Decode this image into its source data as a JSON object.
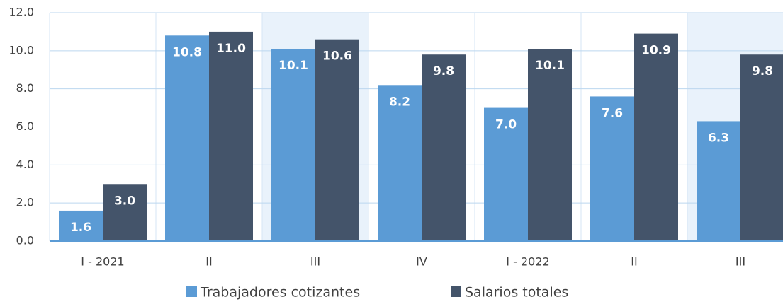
{
  "chart_data": {
    "type": "bar",
    "categories": [
      "I - 2021",
      "II",
      "III",
      "IV",
      "I - 2022",
      "II",
      "III"
    ],
    "series": [
      {
        "name": "Trabajadores cotizantes",
        "color": "#5b9bd5",
        "values": [
          1.6,
          10.8,
          10.1,
          8.2,
          7.0,
          7.6,
          6.3
        ],
        "value_labels": [
          "1.6",
          "10.8",
          "10.1",
          "8.2",
          "7.0",
          "7.6",
          "6.3"
        ]
      },
      {
        "name": "Salarios totales",
        "color": "#44546a",
        "values": [
          3.0,
          11.0,
          10.6,
          9.8,
          10.1,
          10.9,
          9.8
        ],
        "value_labels": [
          "3.0",
          "11.0",
          "10.6",
          "9.8",
          "10.1",
          "10.9",
          "9.8"
        ]
      }
    ],
    "ylim": [
      0,
      12
    ],
    "yticks": [
      {
        "value": 0,
        "label": "0.0"
      },
      {
        "value": 2,
        "label": "2.0"
      },
      {
        "value": 4,
        "label": "4.0"
      },
      {
        "value": 6,
        "label": "6.0"
      },
      {
        "value": 8,
        "label": "8.0"
      },
      {
        "value": 10,
        "label": "10.0"
      },
      {
        "value": 12,
        "label": "12.0"
      }
    ],
    "grid": true
  }
}
